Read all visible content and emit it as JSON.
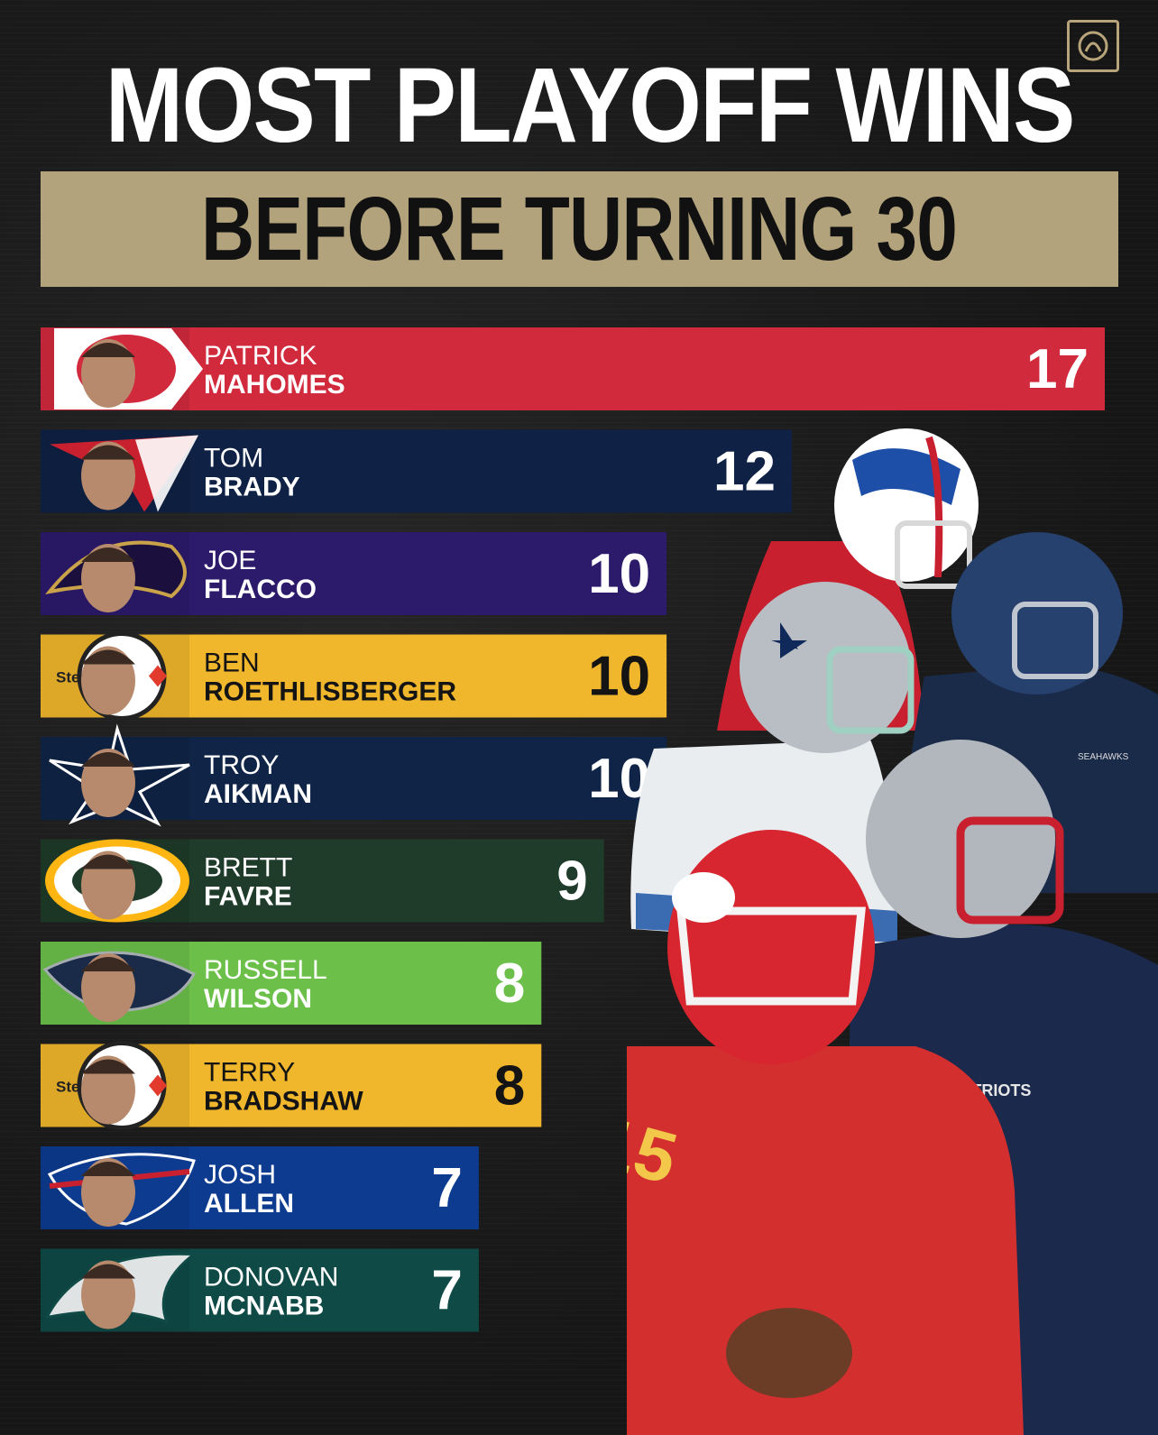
{
  "header": {
    "title": "MOST PLAYOFF WINS",
    "subtitle": "BEFORE TURNING 30"
  },
  "chart_data": {
    "type": "bar",
    "orientation": "horizontal",
    "title": "MOST PLAYOFF WINS",
    "subtitle": "BEFORE TURNING 30",
    "xlim": [
      0,
      17
    ],
    "grid": false,
    "legend": "none",
    "bars": [
      {
        "first": "PATRICK",
        "last": "MAHOMES",
        "value": 17,
        "color": "#d12a3c",
        "logo": "chiefs-logo-icon"
      },
      {
        "first": "TOM",
        "last": "BRADY",
        "value": 12,
        "color": "#0f2145",
        "logo": "patriots-logo-icon"
      },
      {
        "first": "JOE",
        "last": "FLACCO",
        "value": 10,
        "color": "#2c1a6b",
        "logo": "ravens-logo-icon"
      },
      {
        "first": "BEN",
        "last": "ROETHLISBERGER",
        "value": 10,
        "color": "#f0b62c",
        "logo": "steelers-logo-icon",
        "dark_text": true
      },
      {
        "first": "TROY",
        "last": "AIKMAN",
        "value": 10,
        "color": "#102447",
        "logo": "cowboys-logo-icon"
      },
      {
        "first": "BRETT",
        "last": "FAVRE",
        "value": 9,
        "color": "#1f3b2a",
        "logo": "packers-logo-icon"
      },
      {
        "first": "RUSSELL",
        "last": "WILSON",
        "value": 8,
        "color": "#6cc04a",
        "logo": "seahawks-logo-icon"
      },
      {
        "first": "TERRY",
        "last": "BRADSHAW",
        "value": 8,
        "color": "#f0b62c",
        "logo": "steelers-logo-icon",
        "dark_text": true
      },
      {
        "first": "JOSH",
        "last": "ALLEN",
        "value": 7,
        "color": "#0d3b8f",
        "logo": "bills-logo-icon"
      },
      {
        "first": "DONOVAN",
        "last": "MCNABB",
        "value": 7,
        "color": "#0f4a47",
        "logo": "eagles-logo-icon"
      }
    ],
    "logo_labels": {
      "steelers": "Steel"
    },
    "jersey_text": {
      "patriots": "PATRIOTS",
      "seahawks": "SEAHAWKS"
    }
  }
}
